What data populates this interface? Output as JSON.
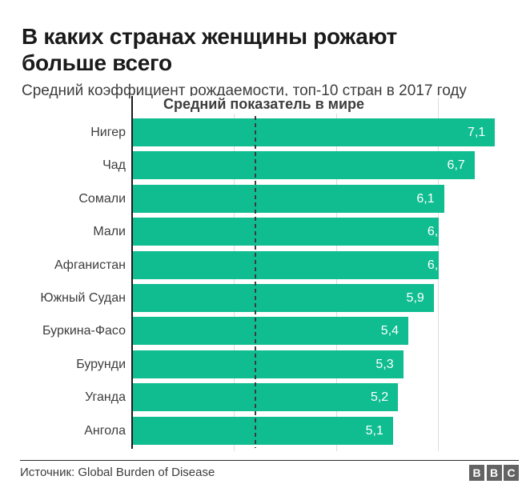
{
  "header": {
    "title": "В каких странах женщины рожают больше всего",
    "subtitle": "Средний коэффициент рождаемости, топ-10 стран в 2017 году"
  },
  "chart_data": {
    "type": "bar",
    "orientation": "horizontal",
    "title": "В каких странах женщины рожают больше всего",
    "subtitle": "Средний коэффициент рождаемости, топ-10 стран в 2017 году",
    "categories": [
      "Нигер",
      "Чад",
      "Сомали",
      "Мали",
      "Афганистан",
      "Южный Судан",
      "Буркина-Фасо",
      "Бурунди",
      "Уганда",
      "Ангола"
    ],
    "values": [
      7.1,
      6.7,
      6.1,
      6.0,
      6.0,
      5.9,
      5.4,
      5.3,
      5.2,
      5.1
    ],
    "value_labels": [
      "7,1",
      "6,7",
      "6,1",
      "6,",
      "6,",
      "5,9",
      "5,4",
      "5,3",
      "5,2",
      "5,1"
    ],
    "world_average": {
      "label": "Средний показатель в мире",
      "value": 2.4
    },
    "gridline_values": [
      2,
      4,
      6
    ],
    "xlim": [
      0,
      7.6
    ],
    "grid": true,
    "bar_color": "#0fbd90",
    "axis_color": "#1a1a1a",
    "gridline_color": "#dcdcdc",
    "world_average_line_color": "#3d3d3d",
    "value_label_color": "#ffffff"
  },
  "footer": {
    "source": "Источник: Global Burden of Disease",
    "logo_letters": [
      "B",
      "B",
      "C"
    ]
  }
}
